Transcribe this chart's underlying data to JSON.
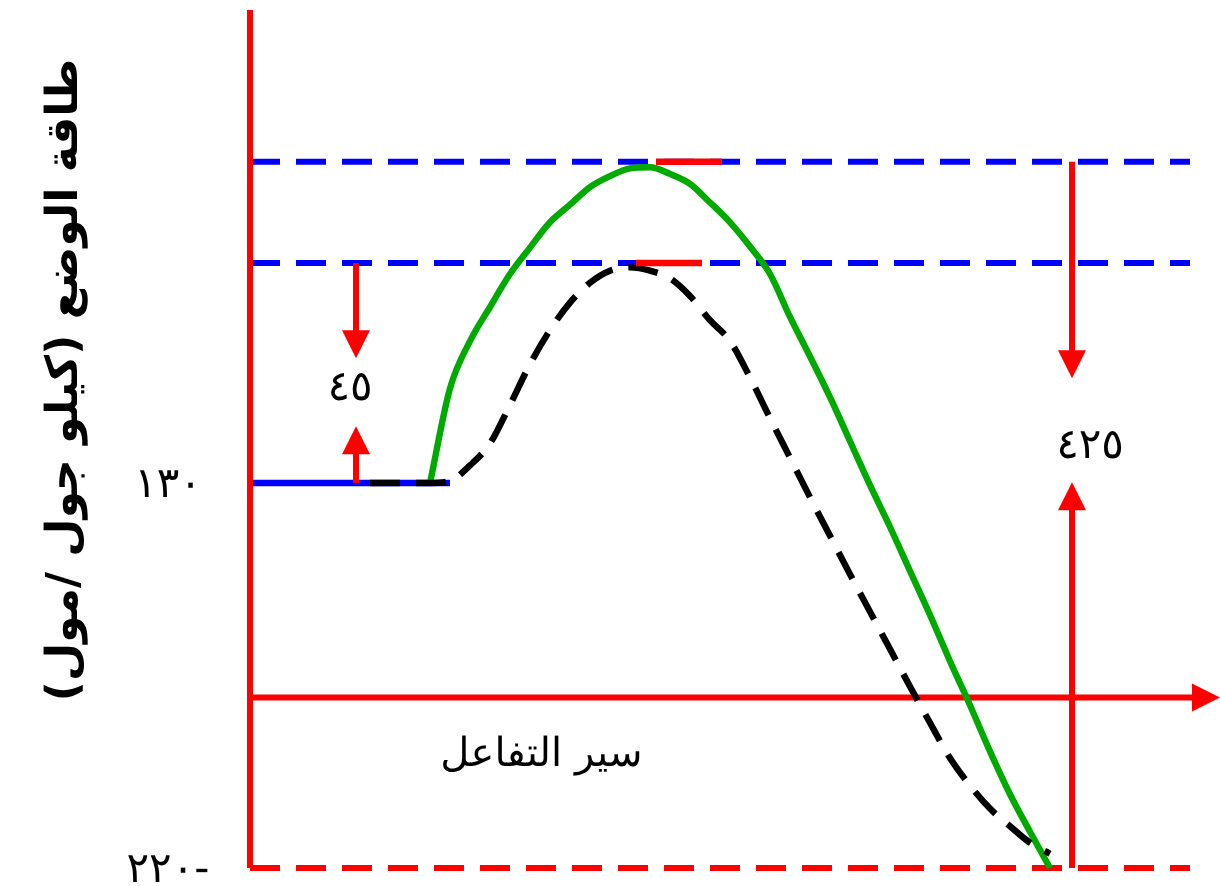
{
  "chart_data": {
    "type": "line",
    "xlabel": "سير التفاعل",
    "ylabel": "طاقة الوضع (كيلو جول /مول)",
    "categories": [
      null,
      null,
      null,
      null,
      null,
      null,
      null,
      null,
      null,
      null,
      null,
      null,
      null,
      null,
      null,
      null,
      null,
      null,
      null,
      null,
      null,
      null,
      null,
      null,
      null,
      null,
      null,
      null,
      null,
      null,
      null,
      null,
      null,
      null,
      null,
      null,
      null,
      null,
      null,
      null,
      null,
      null,
      null,
      null,
      null,
      null,
      null,
      null
    ],
    "ylim": [
      -220,
      560
    ],
    "yticks": [
      {
        "value": 130,
        "label": "١٣٠"
      },
      {
        "value": -220,
        "label": "-٢٢٠"
      }
    ],
    "tick_labels": "y",
    "series": [
      {
        "color": "#0000ff",
        "line_style": "solid",
        "values": [
          130,
          130,
          130,
          130,
          130,
          130,
          130,
          130,
          130,
          130,
          130,
          null,
          null,
          null,
          null,
          null,
          null,
          null,
          null,
          null,
          null,
          null,
          null,
          null,
          null,
          null,
          null,
          null,
          null,
          null,
          null,
          null,
          null,
          null,
          null,
          null,
          null,
          null,
          null,
          null,
          null,
          null,
          null,
          null,
          null,
          null,
          null,
          null
        ]
      },
      {
        "color": "#00aa00",
        "line_style": "solid",
        "values": [
          null,
          null,
          null,
          null,
          null,
          null,
          null,
          null,
          null,
          130,
          216,
          259,
          290,
          320,
          344,
          367,
          383,
          399,
          409,
          416,
          417,
          411,
          402,
          385,
          367,
          345,
          320,
          281,
          245,
          208,
          168,
          128,
          90,
          50,
          10,
          -32,
          -72,
          -114,
          -153,
          -187,
          -220,
          null,
          null,
          null,
          null,
          null,
          null,
          null
        ]
      },
      {
        "color": "#000000",
        "line_style": "dashed",
        "values": [
          null,
          null,
          null,
          null,
          null,
          null,
          130,
          130,
          130,
          130,
          132,
          146,
          166,
          201,
          238,
          269,
          294,
          312,
          323,
          326,
          323,
          316,
          300,
          278,
          259,
          226,
          189,
          153,
          117,
          82,
          47,
          13,
          -21,
          -55,
          -88,
          -120,
          -145,
          -166,
          -182,
          -197,
          -207,
          null,
          null,
          null,
          null,
          null,
          null,
          null
        ]
      }
    ],
    "ref_lines": [
      {
        "axis": "y",
        "value": 422,
        "color": "#0000ff",
        "line_style": "dashed"
      },
      {
        "axis": "y",
        "value": 330,
        "color": "#0000ff",
        "line_style": "dashed"
      },
      {
        "axis": "y",
        "value": -65,
        "color": "#ff0000",
        "line_style": "solid"
      },
      {
        "axis": "y",
        "value": -220,
        "color": "#ff0000",
        "line_style": "dashed"
      }
    ],
    "annotations": [
      "٤٥",
      "٤٢٥"
    ]
  }
}
